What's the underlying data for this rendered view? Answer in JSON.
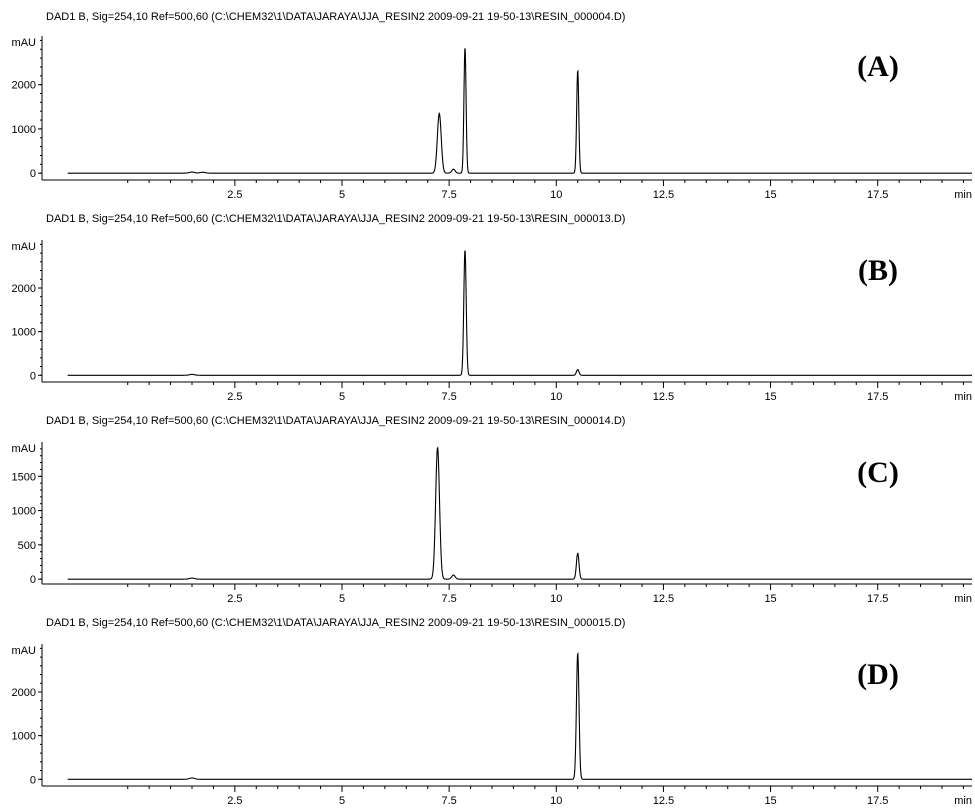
{
  "chart_data": [
    {
      "type": "line",
      "header": "DAD1 B, Sig=254,10 Ref=500,60 (C:\\CHEM32\\1\\DATA\\JARAYA\\JJA_RESIN2 2009-09-21 19-50-13\\RESIN_000004.D)",
      "panel_label": "(A)",
      "ylabel": "mAU",
      "xunit": "min",
      "xlim": [
        -2,
        19.7
      ],
      "ylim": [
        -200,
        3100
      ],
      "yticks": [
        0,
        1000,
        2000
      ],
      "ytick_labels": [
        "0",
        "1000",
        "2000"
      ],
      "xticks": [
        2.5,
        5,
        7.5,
        10,
        12.5,
        15,
        17.5
      ],
      "xtick_labels": [
        "2.5",
        "5",
        "7.5",
        "10",
        "12.5",
        "15",
        "17.5"
      ],
      "baseline": 0,
      "peaks": [
        {
          "x": 1.5,
          "height": 25,
          "width": 0.06
        },
        {
          "x": 1.75,
          "height": 20,
          "width": 0.06
        },
        {
          "x": 7.27,
          "height": 1350,
          "width": 0.045
        },
        {
          "x": 7.6,
          "height": 90,
          "width": 0.04
        },
        {
          "x": 7.87,
          "height": 2850,
          "width": 0.025
        },
        {
          "x": 10.5,
          "height": 2330,
          "width": 0.025
        }
      ]
    },
    {
      "type": "line",
      "header": "DAD1 B, Sig=254,10 Ref=500,60 (C:\\CHEM32\\1\\DATA\\JARAYA\\JJA_RESIN2 2009-09-21 19-50-13\\RESIN_000013.D)",
      "panel_label": "(B)",
      "ylabel": "mAU",
      "xunit": "min",
      "xlim": [
        -2,
        19.7
      ],
      "ylim": [
        -200,
        3100
      ],
      "yticks": [
        0,
        1000,
        2000
      ],
      "ytick_labels": [
        "0",
        "1000",
        "2000"
      ],
      "xticks": [
        2.5,
        5,
        7.5,
        10,
        12.5,
        15,
        17.5
      ],
      "xtick_labels": [
        "2.5",
        "5",
        "7.5",
        "10",
        "12.5",
        "15",
        "17.5"
      ],
      "baseline": 0,
      "peaks": [
        {
          "x": 1.5,
          "height": 20,
          "width": 0.06
        },
        {
          "x": 7.87,
          "height": 2880,
          "width": 0.028
        },
        {
          "x": 10.5,
          "height": 130,
          "width": 0.03
        }
      ]
    },
    {
      "type": "line",
      "header": "DAD1 B, Sig=254,10 Ref=500,60 (C:\\CHEM32\\1\\DATA\\JARAYA\\JJA_RESIN2 2009-09-21 19-50-13\\RESIN_000014.D)",
      "panel_label": "(C)",
      "ylabel": "mAU",
      "xunit": "min",
      "xlim": [
        -2,
        19.7
      ],
      "ylim": [
        -100,
        2000
      ],
      "yticks": [
        0,
        500,
        1000,
        1500
      ],
      "ytick_labels": [
        "0",
        "500",
        "1000",
        "1500"
      ],
      "xticks": [
        2.5,
        5,
        7.5,
        10,
        12.5,
        15,
        17.5
      ],
      "xtick_labels": [
        "2.5",
        "5",
        "7.5",
        "10",
        "12.5",
        "15",
        "17.5"
      ],
      "baseline": 0,
      "peaks": [
        {
          "x": 1.5,
          "height": 15,
          "width": 0.06
        },
        {
          "x": 7.23,
          "height": 1920,
          "width": 0.045
        },
        {
          "x": 7.6,
          "height": 60,
          "width": 0.04
        },
        {
          "x": 10.5,
          "height": 380,
          "width": 0.03
        }
      ]
    },
    {
      "type": "line",
      "header": "DAD1 B, Sig=254,10 Ref=500,60 (C:\\CHEM32\\1\\DATA\\JARAYA\\JJA_RESIN2 2009-09-21 19-50-13\\RESIN_000015.D)",
      "panel_label": "(D)",
      "ylabel": "mAU",
      "xunit": "min",
      "xlim": [
        -2,
        19.7
      ],
      "ylim": [
        -200,
        3100
      ],
      "yticks": [
        0,
        1000,
        2000
      ],
      "ytick_labels": [
        "0",
        "1000",
        "2000"
      ],
      "xticks": [
        2.5,
        5,
        7.5,
        10,
        12.5,
        15,
        17.5
      ],
      "xtick_labels": [
        "2.5",
        "5",
        "7.5",
        "10",
        "12.5",
        "15",
        "17.5"
      ],
      "baseline": 0,
      "peaks": [
        {
          "x": 1.5,
          "height": 30,
          "width": 0.06
        },
        {
          "x": 10.5,
          "height": 2900,
          "width": 0.03
        }
      ]
    }
  ]
}
